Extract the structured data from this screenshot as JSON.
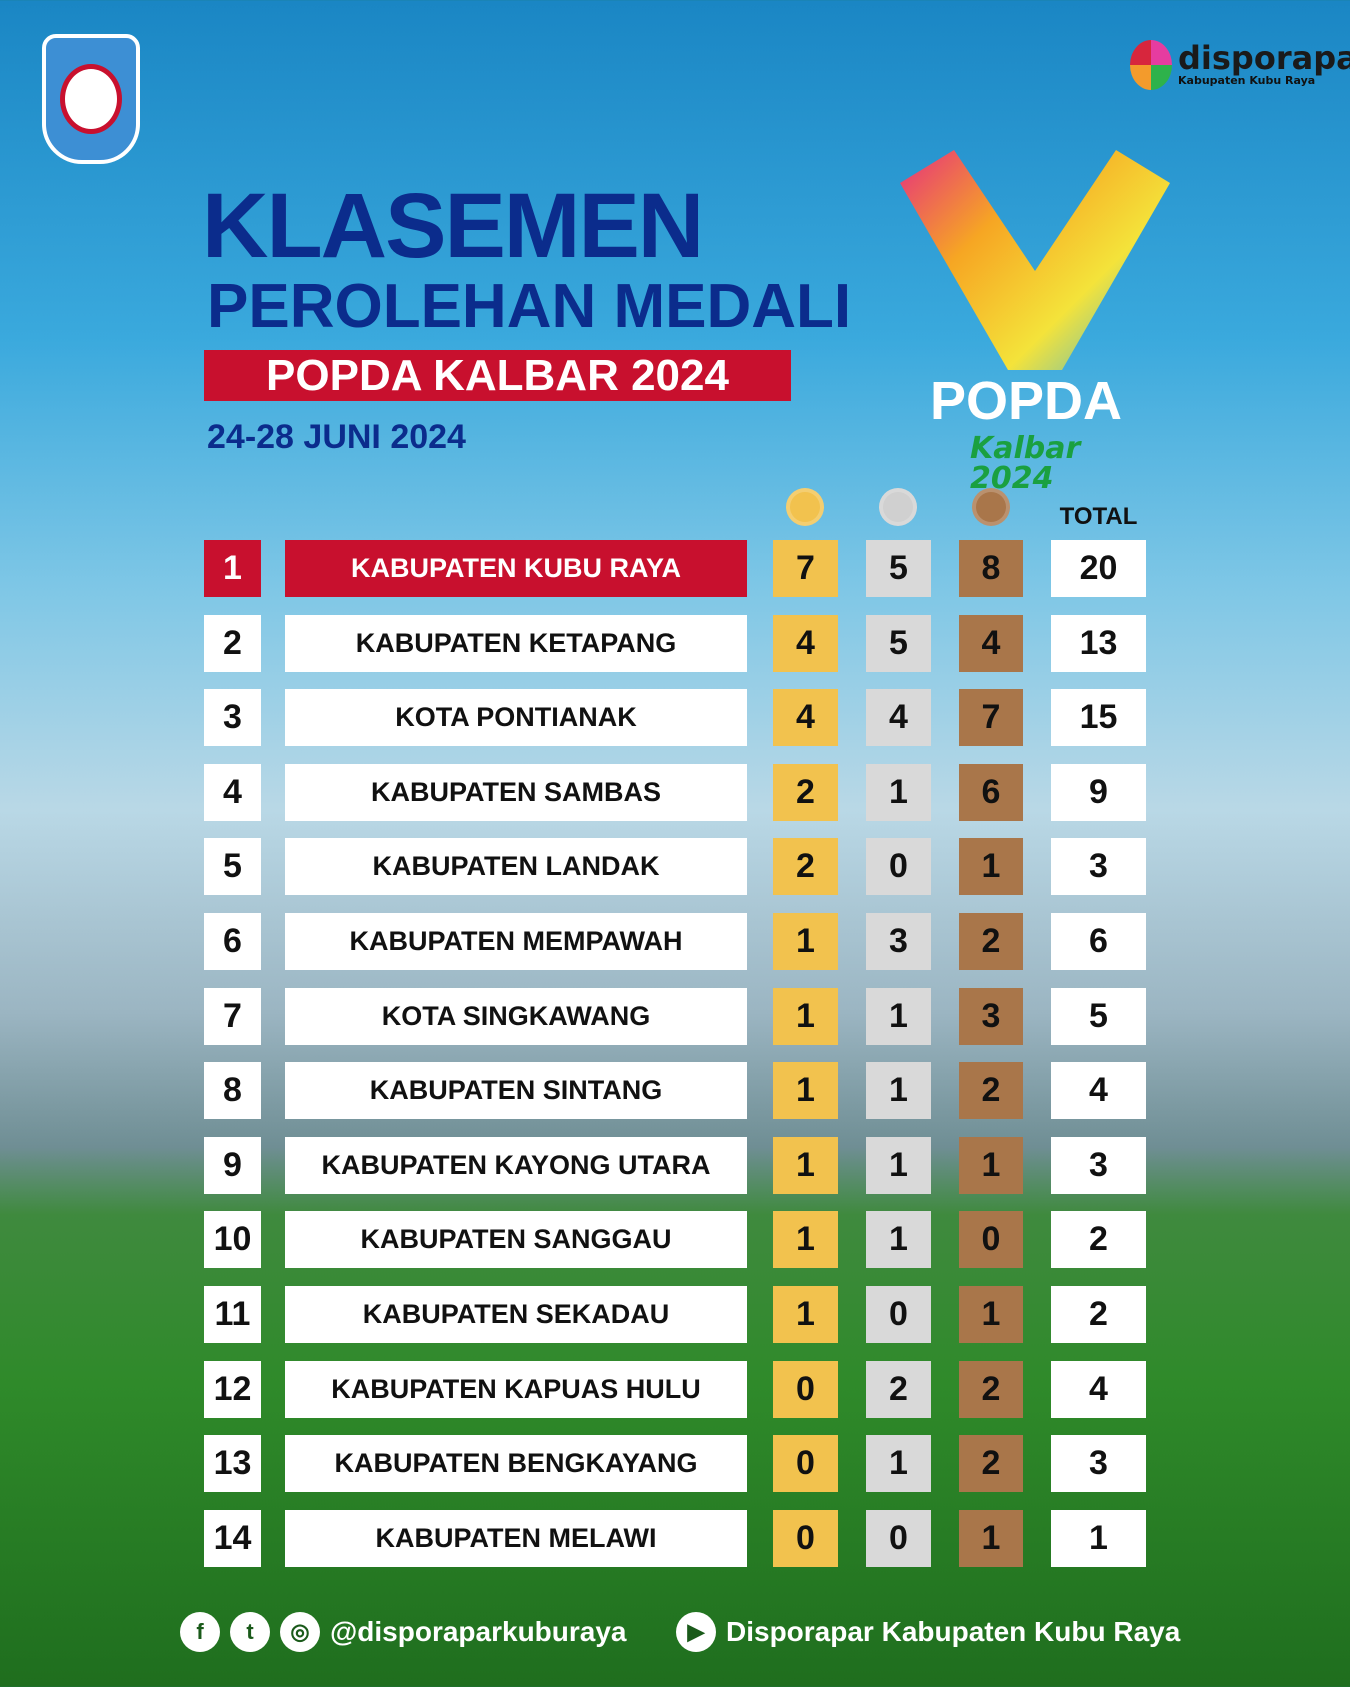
{
  "header": {
    "crest_text": "KABUPATEN KUBU RAYA",
    "brand": "disporapar",
    "brand_sub": "Kabupaten Kubu Raya",
    "title": "KLASEMEN",
    "subtitle": "PEROLEHAN MEDALI",
    "event": "POPDA KALBAR 2024",
    "date": "24-28 JUNI 2024",
    "event_logo_title": "POPDA",
    "event_logo_sub": "Kalbar 2024"
  },
  "table": {
    "columns": [
      "Gold",
      "Silver",
      "Bronze",
      "TOTAL"
    ],
    "rows": [
      {
        "rank": "1",
        "name": "KABUPATEN KUBU RAYA",
        "gold": "7",
        "silver": "5",
        "bronze": "8",
        "total": "20"
      },
      {
        "rank": "2",
        "name": "KABUPATEN KETAPANG",
        "gold": "4",
        "silver": "5",
        "bronze": "4",
        "total": "13"
      },
      {
        "rank": "3",
        "name": "KOTA PONTIANAK",
        "gold": "4",
        "silver": "4",
        "bronze": "7",
        "total": "15"
      },
      {
        "rank": "4",
        "name": "KABUPATEN SAMBAS",
        "gold": "2",
        "silver": "1",
        "bronze": "6",
        "total": "9"
      },
      {
        "rank": "5",
        "name": "KABUPATEN LANDAK",
        "gold": "2",
        "silver": "0",
        "bronze": "1",
        "total": "3"
      },
      {
        "rank": "6",
        "name": "KABUPATEN MEMPAWAH",
        "gold": "1",
        "silver": "3",
        "bronze": "2",
        "total": "6"
      },
      {
        "rank": "7",
        "name": "KOTA SINGKAWANG",
        "gold": "1",
        "silver": "1",
        "bronze": "3",
        "total": "5"
      },
      {
        "rank": "8",
        "name": "KABUPATEN SINTANG",
        "gold": "1",
        "silver": "1",
        "bronze": "2",
        "total": "4"
      },
      {
        "rank": "9",
        "name": "KABUPATEN KAYONG UTARA",
        "gold": "1",
        "silver": "1",
        "bronze": "1",
        "total": "3"
      },
      {
        "rank": "10",
        "name": "KABUPATEN SANGGAU",
        "gold": "1",
        "silver": "1",
        "bronze": "0",
        "total": "2"
      },
      {
        "rank": "11",
        "name": "KABUPATEN SEKADAU",
        "gold": "1",
        "silver": "0",
        "bronze": "1",
        "total": "2"
      },
      {
        "rank": "12",
        "name": "KABUPATEN KAPUAS HULU",
        "gold": "0",
        "silver": "2",
        "bronze": "2",
        "total": "4"
      },
      {
        "rank": "13",
        "name": "KABUPATEN BENGKAYANG",
        "gold": "0",
        "silver": "1",
        "bronze": "2",
        "total": "3"
      },
      {
        "rank": "14",
        "name": "KABUPATEN MELAWI",
        "gold": "0",
        "silver": "0",
        "bronze": "1",
        "total": "1"
      }
    ]
  },
  "footer": {
    "social_handle": "@disporaparkuburaya",
    "youtube": "Disporapar Kabupaten Kubu Raya",
    "icons": [
      "facebook-icon",
      "twitter-icon",
      "instagram-icon",
      "youtube-icon"
    ]
  },
  "colors": {
    "highlight": "#c8102e",
    "title": "#0b2c8c",
    "gold": "#f2c24e",
    "silver": "#d9d9d9",
    "bronze": "#a9764a"
  }
}
